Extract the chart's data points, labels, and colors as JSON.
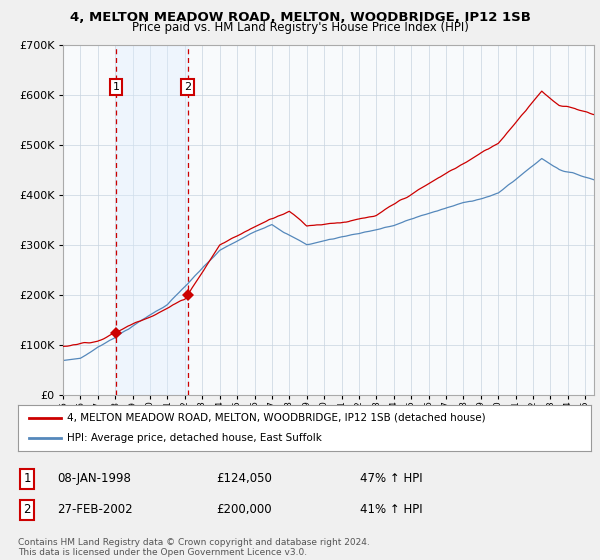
{
  "title": "4, MELTON MEADOW ROAD, MELTON, WOODBRIDGE, IP12 1SB",
  "subtitle": "Price paid vs. HM Land Registry's House Price Index (HPI)",
  "legend_label_red": "4, MELTON MEADOW ROAD, MELTON, WOODBRIDGE, IP12 1SB (detached house)",
  "legend_label_blue": "HPI: Average price, detached house, East Suffolk",
  "sale1_date": "08-JAN-1998",
  "sale1_price": 124050,
  "sale1_year": 1998.04,
  "sale2_date": "27-FEB-2002",
  "sale2_price": 200000,
  "sale2_year": 2002.16,
  "sale1_hpi": "47% ↑ HPI",
  "sale2_hpi": "41% ↑ HPI",
  "footnote": "Contains HM Land Registry data © Crown copyright and database right 2024.\nThis data is licensed under the Open Government Licence v3.0.",
  "red_color": "#cc0000",
  "blue_color": "#5588bb",
  "shade_color": "#ddeeff",
  "background_color": "#f0f0f0",
  "plot_bg_color": "#f8fafc",
  "grid_color": "#c8d4e0",
  "ylim": [
    0,
    700000
  ],
  "xlim_start": 1995.0,
  "xlim_end": 2025.5,
  "title_fontsize": 9.5,
  "subtitle_fontsize": 8.5
}
